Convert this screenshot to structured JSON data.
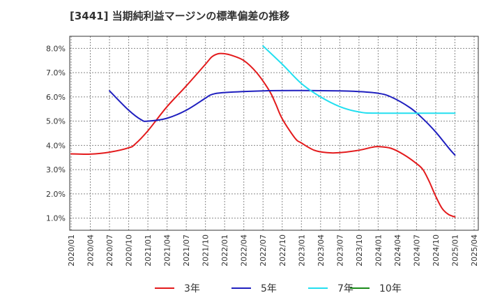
{
  "chart_data": {
    "type": "line",
    "title": "[3441]  当期純利益マージンの標準偏差の推移",
    "xlabel": "",
    "ylabel": "",
    "ylim": [
      0.5,
      8.5
    ],
    "grid": true,
    "legend_position": "bottom",
    "x_ticks": [
      "2020/01",
      "2020/04",
      "2020/07",
      "2020/10",
      "2021/01",
      "2021/04",
      "2021/07",
      "2021/10",
      "2022/01",
      "2022/04",
      "2022/07",
      "2022/10",
      "2023/01",
      "2023/04",
      "2023/07",
      "2023/10",
      "2024/01",
      "2024/04",
      "2024/07",
      "2024/10",
      "2025/01",
      "2025/04"
    ],
    "y_ticks": [
      "1.0%",
      "2.0%",
      "3.0%",
      "4.0%",
      "5.0%",
      "6.0%",
      "7.0%",
      "8.0%"
    ],
    "series": [
      {
        "name": "3年",
        "color": "#e31a1c",
        "points": [
          [
            "2020/01",
            3.65
          ],
          [
            "2020/04",
            3.64
          ],
          [
            "2020/07",
            3.72
          ],
          [
            "2020/10",
            3.9
          ],
          [
            "2020/11",
            4.05
          ],
          [
            "2021/01",
            4.6
          ],
          [
            "2021/04",
            5.6
          ],
          [
            "2021/07",
            6.45
          ],
          [
            "2021/10",
            7.35
          ],
          [
            "2021/11",
            7.65
          ],
          [
            "2021/12",
            7.78
          ],
          [
            "2022/01",
            7.78
          ],
          [
            "2022/02",
            7.72
          ],
          [
            "2022/04",
            7.5
          ],
          [
            "2022/06",
            7.0
          ],
          [
            "2022/08",
            6.25
          ],
          [
            "2022/09",
            5.7
          ],
          [
            "2022/10",
            5.1
          ],
          [
            "2022/12",
            4.3
          ],
          [
            "2023/01",
            4.1
          ],
          [
            "2023/03",
            3.8
          ],
          [
            "2023/05",
            3.7
          ],
          [
            "2023/07",
            3.7
          ],
          [
            "2023/10",
            3.8
          ],
          [
            "2023/12",
            3.92
          ],
          [
            "2024/01",
            3.95
          ],
          [
            "2024/03",
            3.88
          ],
          [
            "2024/05",
            3.62
          ],
          [
            "2024/07",
            3.25
          ],
          [
            "2024/08",
            3.0
          ],
          [
            "2024/09",
            2.5
          ],
          [
            "2024/10",
            1.9
          ],
          [
            "2024/11",
            1.4
          ],
          [
            "2024/12",
            1.15
          ],
          [
            "2025/01",
            1.05
          ]
        ]
      },
      {
        "name": "5年",
        "color": "#1f1fbf",
        "points": [
          [
            "2020/07",
            6.25
          ],
          [
            "2020/10",
            5.45
          ],
          [
            "2020/12",
            5.05
          ],
          [
            "2021/01",
            5.0
          ],
          [
            "2021/04",
            5.12
          ],
          [
            "2021/07",
            5.45
          ],
          [
            "2021/10",
            5.95
          ],
          [
            "2021/11",
            6.1
          ],
          [
            "2022/01",
            6.18
          ],
          [
            "2022/07",
            6.25
          ],
          [
            "2023/01",
            6.26
          ],
          [
            "2023/07",
            6.25
          ],
          [
            "2023/10",
            6.22
          ],
          [
            "2024/01",
            6.15
          ],
          [
            "2024/03",
            6.0
          ],
          [
            "2024/06",
            5.55
          ],
          [
            "2024/08",
            5.1
          ],
          [
            "2024/10",
            4.55
          ],
          [
            "2024/12",
            3.9
          ],
          [
            "2025/01",
            3.6
          ]
        ]
      },
      {
        "name": "7年",
        "color": "#22dff0",
        "points": [
          [
            "2022/07",
            8.1
          ],
          [
            "2022/10",
            7.35
          ],
          [
            "2023/01",
            6.55
          ],
          [
            "2023/04",
            6.0
          ],
          [
            "2023/07",
            5.6
          ],
          [
            "2023/10",
            5.38
          ],
          [
            "2024/01",
            5.33
          ],
          [
            "2025/01",
            5.33
          ]
        ]
      },
      {
        "name": "10年",
        "color": "#1a8a1a",
        "points": []
      }
    ]
  }
}
